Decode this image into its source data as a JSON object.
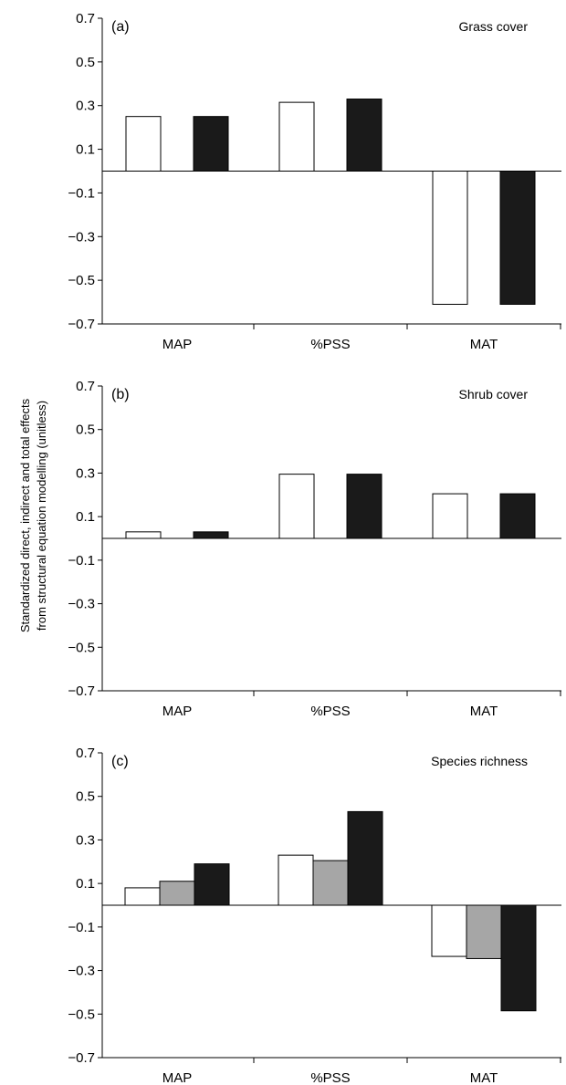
{
  "y_axis_label_line1": "Standardized direct, indirect and total effects",
  "y_axis_label_line2": "from structural equation modelling (unitless)",
  "colors": {
    "direct": "#ffffff",
    "indirect": "#a6a6a6",
    "total": "#1a1a1a",
    "axis": "#000000"
  },
  "chart_data": [
    {
      "type": "bar",
      "panel_label": "(a)",
      "title": "Grass cover",
      "categories": [
        "MAP",
        "%PSS",
        "MAT"
      ],
      "ylim": [
        -0.7,
        0.7
      ],
      "yticks": [
        0.7,
        0.5,
        0.3,
        0.1,
        -0.1,
        -0.3,
        -0.5,
        -0.7
      ],
      "ytick_labels": [
        "0.7",
        "0.5",
        "0.3",
        "0.1",
        "−0.1",
        "−0.3",
        "−0.5",
        "−0.7"
      ],
      "series": [
        {
          "key": "direct",
          "values": [
            0.25,
            0.315,
            null
          ]
        },
        {
          "key": "total",
          "values": [
            0.25,
            0.33,
            null
          ]
        },
        {
          "key": "direct",
          "values": [
            null,
            null,
            -0.61
          ]
        },
        {
          "key": "total",
          "values": [
            null,
            null,
            -0.61
          ]
        }
      ]
    },
    {
      "type": "bar",
      "panel_label": "(b)",
      "title": "Shrub cover",
      "categories": [
        "MAP",
        "%PSS",
        "MAT"
      ],
      "ylim": [
        -0.7,
        0.7
      ],
      "yticks": [
        0.7,
        0.5,
        0.3,
        0.1,
        -0.1,
        -0.3,
        -0.5,
        -0.7
      ],
      "ytick_labels": [
        "0.7",
        "0.5",
        "0.3",
        "0.1",
        "−0.1",
        "−0.3",
        "−0.5",
        "−0.7"
      ],
      "series": [
        {
          "key": "direct",
          "values": [
            0.03,
            0.295,
            0.205
          ]
        },
        {
          "key": "total",
          "values": [
            0.03,
            0.295,
            0.205
          ]
        }
      ]
    },
    {
      "type": "bar",
      "panel_label": "(c)",
      "title": "Species richness",
      "categories": [
        "MAP",
        "%PSS",
        "MAT"
      ],
      "ylim": [
        -0.7,
        0.7
      ],
      "yticks": [
        0.7,
        0.5,
        0.3,
        0.1,
        -0.1,
        -0.3,
        -0.5,
        -0.7
      ],
      "ytick_labels": [
        "0.7",
        "0.5",
        "0.3",
        "0.1",
        "−0.1",
        "−0.3",
        "−0.5",
        "−0.7"
      ],
      "series": [
        {
          "key": "direct",
          "values": [
            0.08,
            0.23,
            -0.235
          ]
        },
        {
          "key": "indirect",
          "values": [
            0.11,
            0.205,
            -0.245
          ]
        },
        {
          "key": "total",
          "values": [
            0.19,
            0.43,
            -0.485
          ]
        }
      ]
    }
  ]
}
